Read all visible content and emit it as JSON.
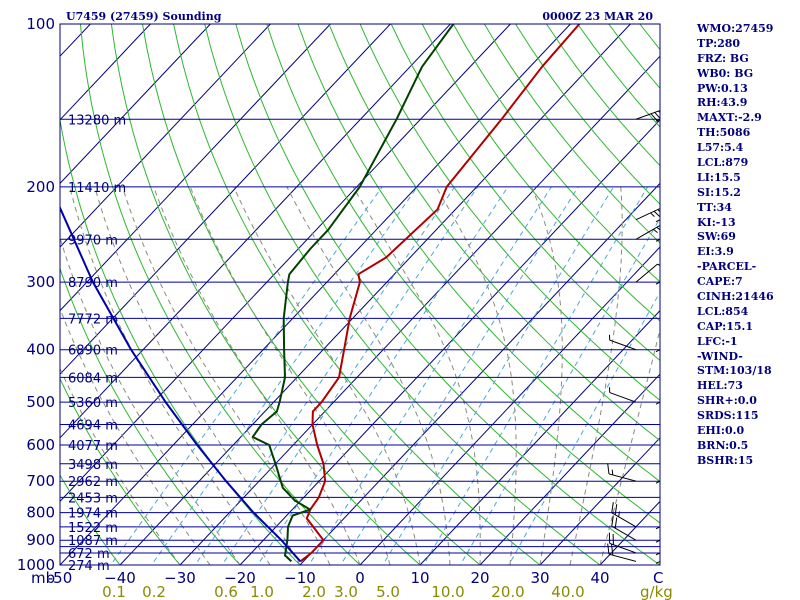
{
  "header": {
    "station": "U7459 (27459) Sounding",
    "time": "0000Z 23 MAR 20"
  },
  "colors": {
    "isobar": "#0000a0",
    "isotherm": "#000080",
    "dry_adiabat": "#2db82d",
    "moist_adiabat": "#8b8b7a",
    "mixing_ratio": "#4aa8d8",
    "temperature": "#b00000",
    "dewpoint": "#004000",
    "parcel": "#0000b0",
    "text": "#000080"
  },
  "indices": [
    "WMO:27459",
    "TP:280",
    "FRZ: BG",
    "WB0: BG",
    "PW:0.13",
    "RH:43.9",
    "MAXT:-2.9",
    "TH:5086",
    "L57:5.4",
    "LCL:879",
    "LI:15.5",
    "SI:15.2",
    "TT:34",
    "KI:-13",
    "SW:69",
    "EI:3.9",
    "-PARCEL-",
    "CAPE:7",
    "CINH:21446",
    "LCL:854",
    "CAP:15.1",
    "LFC:-1",
    "-WIND-",
    "STM:103/18",
    "HEL:73",
    "SHR+:0.0",
    "SRDS:115",
    "EHI:0.0",
    "BRN:0.5",
    "BSHR:15"
  ],
  "chart_data": {
    "type": "line",
    "title": "U7459 (27459) Sounding",
    "subtitle": "0000Z 23 MAR 20",
    "xlabel": "",
    "ylabel": "mb",
    "x_unit_label": "C",
    "mixing_unit_label": "g/kg",
    "xlim": [
      -50,
      50
    ],
    "ylim": [
      1000,
      100
    ],
    "y_scale": "log",
    "temperature_ticks": [
      -50,
      -40,
      -30,
      -20,
      -10,
      0,
      10,
      20,
      30,
      40
    ],
    "temperature_tick_labels": [
      "-50",
      "−40",
      "−30",
      "−20",
      "−10",
      "0",
      "10",
      "20",
      "30",
      "40"
    ],
    "pressure_ticks": [
      100,
      200,
      300,
      400,
      500,
      600,
      700,
      800,
      900,
      1000
    ],
    "mixing_ratio_ticks": [
      0.1,
      0.2,
      0.6,
      1.0,
      2.0,
      3.0,
      5.0,
      10.0,
      20.0,
      40.0
    ],
    "mixing_ratio_labels": [
      "0.1",
      "0.2",
      "0.6",
      "1.0",
      "2.0",
      "3.0",
      "5.0",
      "10.0",
      "20.0",
      "40.0"
    ],
    "mixing_ratio_lines": [
      0.1,
      0.2,
      0.4,
      0.6,
      1.0,
      2.0,
      3.0,
      5.0,
      8.0,
      12.0,
      20.0
    ],
    "height_levels": [
      {
        "p": 150,
        "label": "13280 m"
      },
      {
        "p": 200,
        "label": "11410 m"
      },
      {
        "p": 250,
        "label": "9970 m"
      },
      {
        "p": 300,
        "label": "8790 m"
      },
      {
        "p": 350,
        "label": "7772 m"
      },
      {
        "p": 400,
        "label": "6890 m"
      },
      {
        "p": 450,
        "label": "6084 m"
      },
      {
        "p": 500,
        "label": "5360 m"
      },
      {
        "p": 550,
        "label": "4694 m"
      },
      {
        "p": 600,
        "label": "4077 m"
      },
      {
        "p": 650,
        "label": "3498 m"
      },
      {
        "p": 700,
        "label": "2962 m"
      },
      {
        "p": 750,
        "label": "2453 m"
      },
      {
        "p": 800,
        "label": "1974 m"
      },
      {
        "p": 850,
        "label": "1522 m"
      },
      {
        "p": 900,
        "label": "1087 m"
      },
      {
        "p": 950,
        "label": "672 m"
      },
      {
        "p": 1000,
        "label": "274 m"
      }
    ],
    "series": [
      {
        "key": "temperature",
        "points": [
          {
            "p": 985,
            "t": -10.5
          },
          {
            "p": 950,
            "t": -10.0
          },
          {
            "p": 900,
            "t": -10.0
          },
          {
            "p": 860,
            "t": -13.0
          },
          {
            "p": 820,
            "t": -16.2
          },
          {
            "p": 790,
            "t": -17.0
          },
          {
            "p": 750,
            "t": -17.5
          },
          {
            "p": 700,
            "t": -19.0
          },
          {
            "p": 650,
            "t": -22.0
          },
          {
            "p": 600,
            "t": -26.0
          },
          {
            "p": 550,
            "t": -30.0
          },
          {
            "p": 520,
            "t": -32.0
          },
          {
            "p": 500,
            "t": -32.0
          },
          {
            "p": 450,
            "t": -33.0
          },
          {
            "p": 400,
            "t": -36.5
          },
          {
            "p": 350,
            "t": -40.5
          },
          {
            "p": 300,
            "t": -44.5
          },
          {
            "p": 290,
            "t": -46.0
          },
          {
            "p": 270,
            "t": -44.0
          },
          {
            "p": 220,
            "t": -43.0
          },
          {
            "p": 200,
            "t": -45.0
          },
          {
            "p": 150,
            "t": -46.5
          },
          {
            "p": 120,
            "t": -48.0
          },
          {
            "p": 100,
            "t": -48.5
          }
        ]
      },
      {
        "key": "dewpoint",
        "points": [
          {
            "p": 985,
            "t": -12.0
          },
          {
            "p": 960,
            "t": -14.0
          },
          {
            "p": 900,
            "t": -16.0
          },
          {
            "p": 850,
            "t": -18.0
          },
          {
            "p": 810,
            "t": -19.0
          },
          {
            "p": 790,
            "t": -17.0
          },
          {
            "p": 760,
            "t": -21.0
          },
          {
            "p": 720,
            "t": -25.0
          },
          {
            "p": 650,
            "t": -30.0
          },
          {
            "p": 600,
            "t": -34.0
          },
          {
            "p": 580,
            "t": -38.0
          },
          {
            "p": 550,
            "t": -38.5
          },
          {
            "p": 520,
            "t": -38.0
          },
          {
            "p": 500,
            "t": -39.0
          },
          {
            "p": 450,
            "t": -42.0
          },
          {
            "p": 400,
            "t": -46.5
          },
          {
            "p": 350,
            "t": -51.5
          },
          {
            "p": 300,
            "t": -56.5
          },
          {
            "p": 290,
            "t": -57.5
          },
          {
            "p": 260,
            "t": -58.0
          },
          {
            "p": 240,
            "t": -58.0
          },
          {
            "p": 200,
            "t": -59.5
          },
          {
            "p": 150,
            "t": -64.0
          },
          {
            "p": 120,
            "t": -68.0
          },
          {
            "p": 100,
            "t": -69.5
          }
        ]
      },
      {
        "key": "parcel",
        "points": [
          {
            "p": 985,
            "t": -10.5
          },
          {
            "p": 900,
            "t": -17.0
          },
          {
            "p": 800,
            "t": -26.0
          },
          {
            "p": 700,
            "t": -35.5
          },
          {
            "p": 600,
            "t": -46.0
          },
          {
            "p": 500,
            "t": -58.0
          },
          {
            "p": 400,
            "t": -72.0
          },
          {
            "p": 300,
            "t": -89.0
          },
          {
            "p": 200,
            "t": -111.0
          },
          {
            "p": 140,
            "t": -129.0
          },
          {
            "p": 110,
            "t": -141.0
          }
        ]
      }
    ],
    "wind_barbs": [
      {
        "p": 985,
        "dir": 285,
        "spd": 20
      },
      {
        "p": 950,
        "dir": 290,
        "spd": 20
      },
      {
        "p": 900,
        "dir": 300,
        "spd": 20
      },
      {
        "p": 850,
        "dir": 300,
        "spd": 25
      },
      {
        "p": 700,
        "dir": 285,
        "spd": 15
      },
      {
        "p": 500,
        "dir": 290,
        "spd": 5
      },
      {
        "p": 400,
        "dir": 290,
        "spd": 5
      },
      {
        "p": 300,
        "dir": 50,
        "spd": 10
      },
      {
        "p": 250,
        "dir": 60,
        "spd": 25
      },
      {
        "p": 230,
        "dir": 65,
        "spd": 35
      },
      {
        "p": 150,
        "dir": 70,
        "spd": 40
      }
    ]
  }
}
